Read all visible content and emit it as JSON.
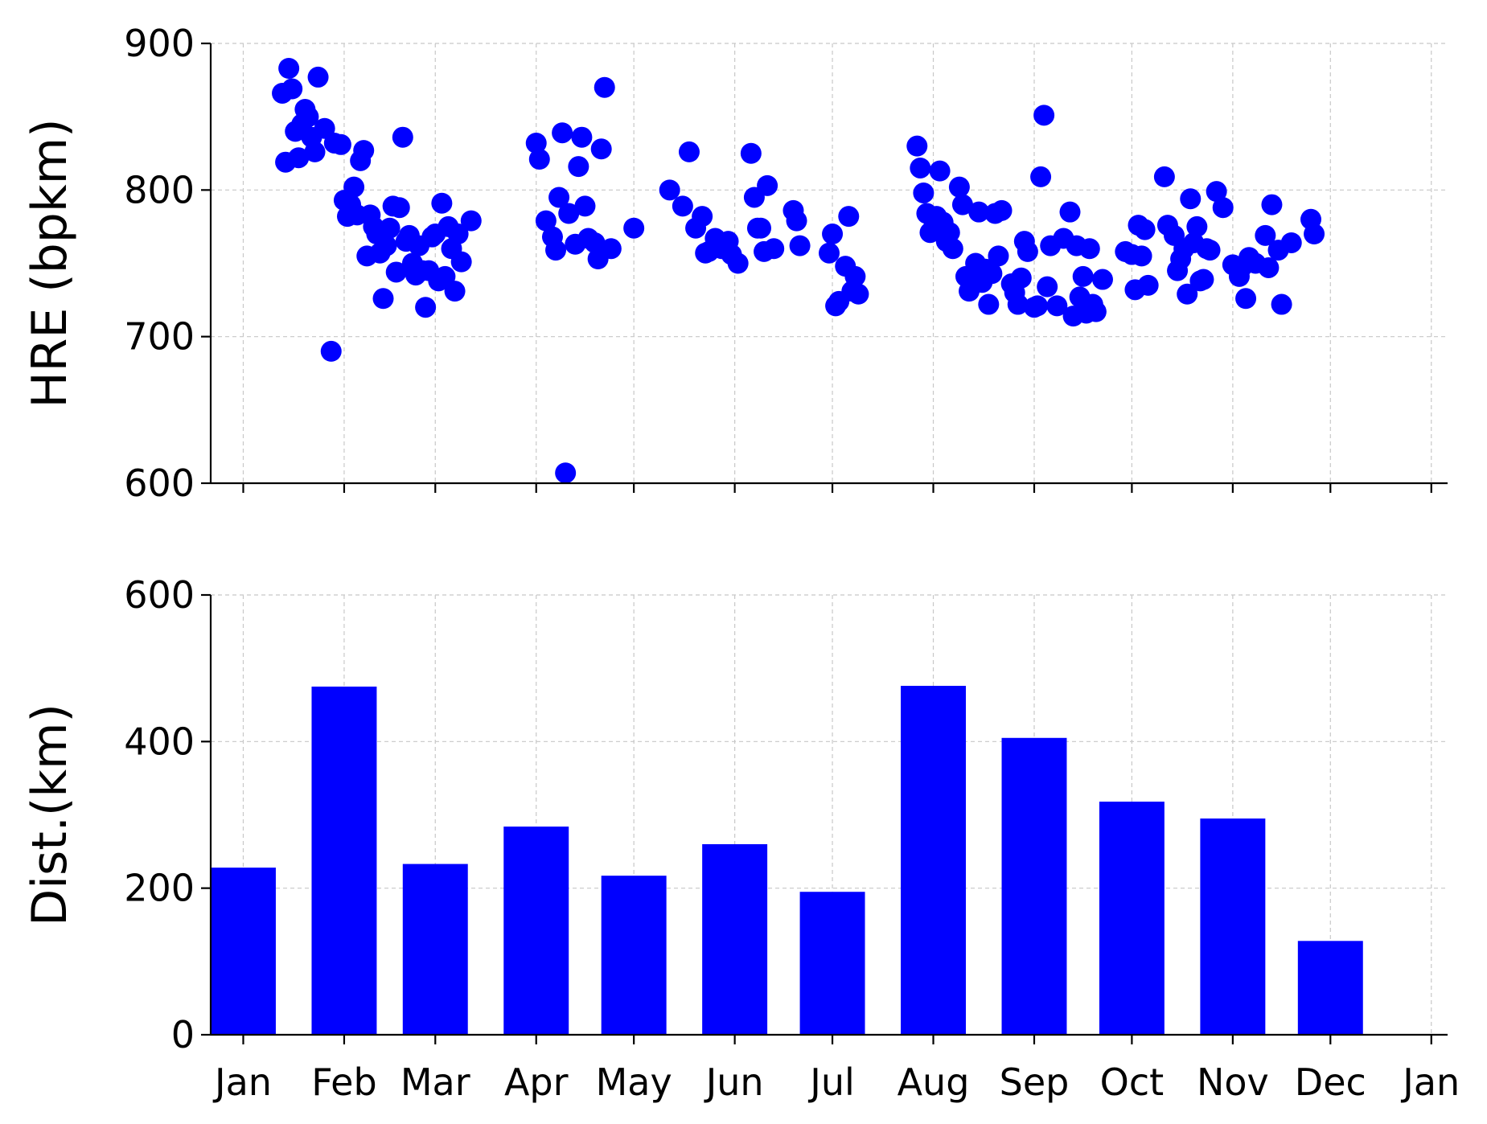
{
  "colors": {
    "marker": "#0000ff",
    "bar": "#0000ff",
    "grid": "#c8c8c8",
    "axis": "#000000"
  },
  "chart_data": [
    {
      "type": "scatter",
      "xlabel": "",
      "ylabel": "HRE (bpkm)",
      "ylim": [
        600,
        900
      ],
      "yticks": [
        600,
        700,
        800,
        900
      ],
      "xlim": [
        "2022-12-22",
        "2024-01-06"
      ],
      "xticks": [
        "2023-01-01",
        "2023-02-01",
        "2023-03-01",
        "2023-04-01",
        "2023-05-01",
        "2023-06-01",
        "2023-07-01",
        "2023-08-01",
        "2023-09-01",
        "2023-10-01",
        "2023-11-01",
        "2023-12-01",
        "2024-01-01"
      ],
      "grid": true,
      "points": [
        [
          "2023-01-13",
          866
        ],
        [
          "2023-01-14",
          819
        ],
        [
          "2023-01-15",
          883
        ],
        [
          "2023-01-16",
          869
        ],
        [
          "2023-01-17",
          840
        ],
        [
          "2023-01-18",
          822
        ],
        [
          "2023-01-19",
          845
        ],
        [
          "2023-01-20",
          855
        ],
        [
          "2023-01-21",
          850
        ],
        [
          "2023-01-22",
          836
        ],
        [
          "2023-01-23",
          826
        ],
        [
          "2023-01-24",
          877
        ],
        [
          "2023-01-26",
          842
        ],
        [
          "2023-01-28",
          690
        ],
        [
          "2023-01-29",
          832
        ],
        [
          "2023-01-31",
          831
        ],
        [
          "2023-02-01",
          793
        ],
        [
          "2023-02-02",
          782
        ],
        [
          "2023-02-03",
          790
        ],
        [
          "2023-02-04",
          802
        ],
        [
          "2023-02-05",
          783
        ],
        [
          "2023-02-06",
          820
        ],
        [
          "2023-02-07",
          827
        ],
        [
          "2023-02-08",
          755
        ],
        [
          "2023-02-09",
          783
        ],
        [
          "2023-02-10",
          775
        ],
        [
          "2023-02-11",
          770
        ],
        [
          "2023-02-12",
          757
        ],
        [
          "2023-02-13",
          726
        ],
        [
          "2023-02-14",
          762
        ],
        [
          "2023-02-15",
          774
        ],
        [
          "2023-02-16",
          789
        ],
        [
          "2023-02-17",
          744
        ],
        [
          "2023-02-18",
          788
        ],
        [
          "2023-02-19",
          836
        ],
        [
          "2023-02-20",
          765
        ],
        [
          "2023-02-21",
          769
        ],
        [
          "2023-02-22",
          750
        ],
        [
          "2023-02-23",
          742
        ],
        [
          "2023-02-24",
          762
        ],
        [
          "2023-02-25",
          745
        ],
        [
          "2023-02-26",
          720
        ],
        [
          "2023-02-27",
          745
        ],
        [
          "2023-02-28",
          768
        ],
        [
          "2023-03-01",
          770
        ],
        [
          "2023-03-02",
          738
        ],
        [
          "2023-03-03",
          791
        ],
        [
          "2023-03-04",
          741
        ],
        [
          "2023-03-05",
          775
        ],
        [
          "2023-03-06",
          760
        ],
        [
          "2023-03-07",
          731
        ],
        [
          "2023-03-08",
          770
        ],
        [
          "2023-03-09",
          751
        ],
        [
          "2023-03-12",
          779
        ],
        [
          "2023-04-01",
          832
        ],
        [
          "2023-04-02",
          821
        ],
        [
          "2023-04-04",
          779
        ],
        [
          "2023-04-06",
          768
        ],
        [
          "2023-04-07",
          759
        ],
        [
          "2023-04-08",
          795
        ],
        [
          "2023-04-09",
          839
        ],
        [
          "2023-04-10",
          607
        ],
        [
          "2023-04-11",
          784
        ],
        [
          "2023-04-13",
          763
        ],
        [
          "2023-04-14",
          816
        ],
        [
          "2023-04-15",
          836
        ],
        [
          "2023-04-16",
          789
        ],
        [
          "2023-04-17",
          767
        ],
        [
          "2023-04-19",
          764
        ],
        [
          "2023-04-20",
          753
        ],
        [
          "2023-04-21",
          828
        ],
        [
          "2023-04-22",
          870
        ],
        [
          "2023-04-24",
          760
        ],
        [
          "2023-05-01",
          774
        ],
        [
          "2023-05-12",
          800
        ],
        [
          "2023-05-16",
          789
        ],
        [
          "2023-05-18",
          826
        ],
        [
          "2023-05-20",
          774
        ],
        [
          "2023-05-22",
          782
        ],
        [
          "2023-05-23",
          757
        ],
        [
          "2023-05-24",
          758
        ],
        [
          "2023-05-26",
          767
        ],
        [
          "2023-05-28",
          760
        ],
        [
          "2023-05-30",
          765
        ],
        [
          "2023-05-31",
          756
        ],
        [
          "2023-06-02",
          750
        ],
        [
          "2023-06-06",
          825
        ],
        [
          "2023-06-07",
          795
        ],
        [
          "2023-06-08",
          774
        ],
        [
          "2023-06-09",
          774
        ],
        [
          "2023-06-10",
          758
        ],
        [
          "2023-06-11",
          803
        ],
        [
          "2023-06-13",
          760
        ],
        [
          "2023-06-19",
          786
        ],
        [
          "2023-06-20",
          779
        ],
        [
          "2023-06-21",
          762
        ],
        [
          "2023-06-30",
          757
        ],
        [
          "2023-07-01",
          770
        ],
        [
          "2023-07-02",
          721
        ],
        [
          "2023-07-03",
          724
        ],
        [
          "2023-07-05",
          748
        ],
        [
          "2023-07-06",
          782
        ],
        [
          "2023-07-07",
          731
        ],
        [
          "2023-07-08",
          741
        ],
        [
          "2023-07-09",
          729
        ],
        [
          "2023-07-27",
          830
        ],
        [
          "2023-07-28",
          815
        ],
        [
          "2023-07-29",
          798
        ],
        [
          "2023-07-30",
          784
        ],
        [
          "2023-07-31",
          771
        ],
        [
          "2023-08-01",
          774
        ],
        [
          "2023-08-02",
          782
        ],
        [
          "2023-08-03",
          813
        ],
        [
          "2023-08-04",
          778
        ],
        [
          "2023-08-05",
          765
        ],
        [
          "2023-08-06",
          771
        ],
        [
          "2023-08-07",
          760
        ],
        [
          "2023-08-09",
          802
        ],
        [
          "2023-08-10",
          790
        ],
        [
          "2023-08-11",
          741
        ],
        [
          "2023-08-12",
          731
        ],
        [
          "2023-08-13",
          738
        ],
        [
          "2023-08-14",
          750
        ],
        [
          "2023-08-15",
          785
        ],
        [
          "2023-08-16",
          737
        ],
        [
          "2023-08-17",
          746
        ],
        [
          "2023-08-18",
          722
        ],
        [
          "2023-08-19",
          743
        ],
        [
          "2023-08-20",
          784
        ],
        [
          "2023-08-21",
          755
        ],
        [
          "2023-08-22",
          786
        ],
        [
          "2023-08-25",
          736
        ],
        [
          "2023-08-26",
          730
        ],
        [
          "2023-08-27",
          722
        ],
        [
          "2023-08-28",
          740
        ],
        [
          "2023-08-29",
          765
        ],
        [
          "2023-08-30",
          758
        ],
        [
          "2023-09-01",
          720
        ],
        [
          "2023-09-02",
          721
        ],
        [
          "2023-09-03",
          809
        ],
        [
          "2023-09-04",
          851
        ],
        [
          "2023-09-05",
          734
        ],
        [
          "2023-09-06",
          762
        ],
        [
          "2023-09-08",
          721
        ],
        [
          "2023-09-10",
          767
        ],
        [
          "2023-09-12",
          785
        ],
        [
          "2023-09-13",
          714
        ],
        [
          "2023-09-14",
          762
        ],
        [
          "2023-09-15",
          727
        ],
        [
          "2023-09-16",
          741
        ],
        [
          "2023-09-17",
          716
        ],
        [
          "2023-09-18",
          760
        ],
        [
          "2023-09-19",
          722
        ],
        [
          "2023-09-20",
          717
        ],
        [
          "2023-09-22",
          739
        ],
        [
          "2023-09-29",
          758
        ],
        [
          "2023-10-01",
          756
        ],
        [
          "2023-10-02",
          732
        ],
        [
          "2023-10-03",
          776
        ],
        [
          "2023-10-04",
          755
        ],
        [
          "2023-10-05",
          773
        ],
        [
          "2023-10-06",
          735
        ],
        [
          "2023-10-11",
          809
        ],
        [
          "2023-10-12",
          776
        ],
        [
          "2023-10-14",
          769
        ],
        [
          "2023-10-15",
          745
        ],
        [
          "2023-10-16",
          753
        ],
        [
          "2023-10-17",
          760
        ],
        [
          "2023-10-18",
          729
        ],
        [
          "2023-10-19",
          794
        ],
        [
          "2023-10-20",
          764
        ],
        [
          "2023-10-21",
          775
        ],
        [
          "2023-10-22",
          738
        ],
        [
          "2023-10-23",
          739
        ],
        [
          "2023-10-24",
          760
        ],
        [
          "2023-10-25",
          759
        ],
        [
          "2023-10-27",
          799
        ],
        [
          "2023-10-29",
          788
        ],
        [
          "2023-11-01",
          749
        ],
        [
          "2023-11-03",
          741
        ],
        [
          "2023-11-04",
          748
        ],
        [
          "2023-11-05",
          726
        ],
        [
          "2023-11-06",
          754
        ],
        [
          "2023-11-08",
          750
        ],
        [
          "2023-11-11",
          769
        ],
        [
          "2023-11-12",
          747
        ],
        [
          "2023-11-13",
          790
        ],
        [
          "2023-11-15",
          759
        ],
        [
          "2023-11-16",
          722
        ],
        [
          "2023-11-19",
          764
        ],
        [
          "2023-11-25",
          780
        ],
        [
          "2023-11-26",
          770
        ]
      ]
    },
    {
      "type": "bar",
      "xlabel": "",
      "ylabel": "Dist.(km)",
      "ylim": [
        0,
        600
      ],
      "yticks": [
        0,
        200,
        400,
        600
      ],
      "xlim": [
        "2022-12-22",
        "2024-01-06"
      ],
      "xticks": [
        "2023-01-01",
        "2023-02-01",
        "2023-03-01",
        "2023-04-01",
        "2023-05-01",
        "2023-06-01",
        "2023-07-01",
        "2023-08-01",
        "2023-09-01",
        "2023-10-01",
        "2023-11-01",
        "2023-12-01",
        "2024-01-01"
      ],
      "tick_labels": [
        "Jan",
        "Feb",
        "Mar",
        "Apr",
        "May",
        "Jun",
        "Jul",
        "Aug",
        "Sep",
        "Oct",
        "Nov",
        "Dec",
        "Jan"
      ],
      "grid": true,
      "categories": [
        "2023-01-01",
        "2023-02-01",
        "2023-03-01",
        "2023-04-01",
        "2023-05-01",
        "2023-06-01",
        "2023-07-01",
        "2023-08-01",
        "2023-09-01",
        "2023-10-01",
        "2023-11-01",
        "2023-12-01"
      ],
      "values": [
        228,
        475,
        233,
        284,
        217,
        260,
        195,
        476,
        405,
        318,
        295,
        128
      ]
    }
  ]
}
